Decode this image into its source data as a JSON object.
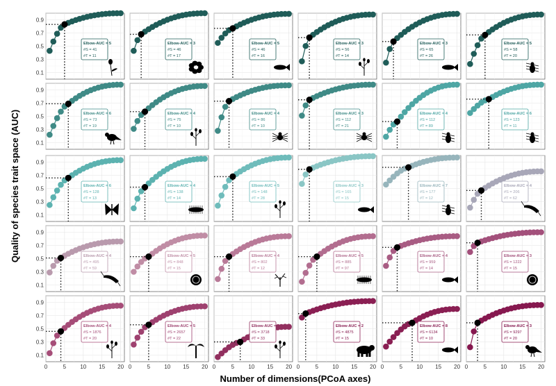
{
  "chart_data": {
    "type": "scatter",
    "xlabel": "Number of dimensions(PCoA axes)",
    "ylabel": "Quality of species trait space (AUC)",
    "xlim": [
      0,
      21
    ],
    "ylim": [
      0,
      1
    ],
    "x_ticks": [
      0,
      5,
      10,
      15,
      20
    ],
    "y_ticks": [
      0.1,
      0.3,
      0.5,
      0.7,
      0.9
    ],
    "grid": true,
    "legend": "none",
    "annotation_labels": {
      "elbow": "Elbow-AUC = ",
      "species": "#S = ",
      "traits": "#T = "
    },
    "panels": [
      {
        "elbow": 5,
        "s": 41,
        "t": 11,
        "auc": 0.83,
        "start": 0.43,
        "end": 1.0,
        "icon": "flower-icon",
        "color": "#1f5c58"
      },
      {
        "elbow": 3,
        "s": 46,
        "t": 17,
        "auc": 0.68,
        "start": 0.43,
        "end": 1.0,
        "icon": "plant-rosette-icon",
        "color": "#1f5c58"
      },
      {
        "elbow": 5,
        "s": 46,
        "t": 16,
        "auc": 0.77,
        "start": 0.55,
        "end": 0.99,
        "icon": "fish-icon",
        "color": "#1f5c58"
      },
      {
        "elbow": 3,
        "s": 56,
        "t": 14,
        "auc": 0.63,
        "start": 0.27,
        "end": 0.98,
        "icon": "grass-icon",
        "color": "#1f5c58"
      },
      {
        "elbow": 3,
        "s": 65,
        "t": 26,
        "auc": 0.57,
        "start": 0.25,
        "end": 0.99,
        "icon": "fish-icon",
        "color": "#1f5c58"
      },
      {
        "elbow": 5,
        "s": 58,
        "t": 20,
        "auc": 0.67,
        "start": 0.23,
        "end": 0.98,
        "icon": "beetle-icon",
        "color": "#1f5c58"
      },
      {
        "elbow": 6,
        "s": 73,
        "t": 19,
        "auc": 0.69,
        "start": 0.22,
        "end": 0.98,
        "icon": "bird-grouse-icon",
        "color": "#3f8a86"
      },
      {
        "elbow": 4,
        "s": 75,
        "t": 10,
        "auc": 0.57,
        "start": 0.31,
        "end": 0.96,
        "icon": "plant-icon",
        "color": "#3f8a86"
      },
      {
        "elbow": 4,
        "s": 86,
        "t": 10,
        "auc": 0.73,
        "start": 0.28,
        "end": 0.97,
        "icon": "spider-icon",
        "color": "#3f8a86"
      },
      {
        "elbow": 3,
        "s": 112,
        "t": 21,
        "auc": 0.75,
        "start": 0.51,
        "end": 0.98,
        "icon": "spider-icon",
        "color": "#3f8a86"
      },
      {
        "elbow": 4,
        "s": 112,
        "t": 89,
        "auc": 0.42,
        "start": 0.19,
        "end": 0.98,
        "icon": "water-bug-icon",
        "color": "#4ea6a4"
      },
      {
        "elbow": 6,
        "s": 123,
        "t": 11,
        "auc": 0.76,
        "start": 0.55,
        "end": 0.98,
        "icon": "ant-icon",
        "color": "#4ea6a4"
      },
      {
        "elbow": 6,
        "s": 128,
        "t": 13,
        "auc": 0.66,
        "start": 0.25,
        "end": 0.93,
        "icon": "butterfly-icon",
        "color": "#5cb2b0"
      },
      {
        "elbow": 4,
        "s": 138,
        "t": 14,
        "auc": 0.52,
        "start": 0.2,
        "end": 0.95,
        "icon": "millipede-icon",
        "color": "#5cb2b0"
      },
      {
        "elbow": 5,
        "s": 148,
        "t": 28,
        "auc": 0.68,
        "start": 0.24,
        "end": 0.97,
        "icon": "plant-icon",
        "color": "#6fbcbb"
      },
      {
        "elbow": 3,
        "s": 165,
        "t": 15,
        "auc": 0.79,
        "start": 0.57,
        "end": 0.99,
        "icon": "fish-icon",
        "color": "#8ac6c5"
      },
      {
        "elbow": 7,
        "s": 177,
        "t": 12,
        "auc": 0.82,
        "start": 0.56,
        "end": 0.97,
        "icon": "flea-icon",
        "color": "#97b5bc"
      },
      {
        "elbow": 4,
        "s": 206,
        "t": 62,
        "auc": 0.47,
        "start": 0.21,
        "end": 0.76,
        "icon": "mayfly-icon",
        "color": "#a8a7b8"
      },
      {
        "elbow": 4,
        "s": 495,
        "t": 59,
        "auc": 0.51,
        "start": 0.29,
        "end": 0.76,
        "icon": "shrimp-icon",
        "color": "#b99aad"
      },
      {
        "elbow": 5,
        "s": 848,
        "t": 15,
        "auc": 0.53,
        "start": 0.3,
        "end": 0.85,
        "icon": "shell-icon",
        "color": "#c08da5"
      },
      {
        "elbow": 4,
        "s": 802,
        "t": 12,
        "auc": 0.53,
        "start": 0.19,
        "end": 0.84,
        "icon": "coral-icon",
        "color": "#b97a98"
      },
      {
        "elbow": 5,
        "s": 885,
        "t": 97,
        "auc": 0.53,
        "start": 0.15,
        "end": 0.84,
        "icon": "sea-cucumber-icon",
        "color": "#b26d8f"
      },
      {
        "elbow": 4,
        "s": 959,
        "t": 14,
        "auc": 0.67,
        "start": 0.39,
        "end": 0.84,
        "icon": "shark-icon",
        "color": "#a85c83"
      },
      {
        "elbow": 3,
        "s": 1222,
        "t": 15,
        "auc": 0.74,
        "start": 0.6,
        "end": 0.9,
        "icon": "sand-dollar-icon",
        "color": "#a3507b"
      },
      {
        "elbow": 4,
        "s": 1876,
        "t": 20,
        "auc": 0.46,
        "start": 0.13,
        "end": 0.85,
        "icon": "plant-icon",
        "color": "#a64d78"
      },
      {
        "elbow": 5,
        "s": 2657,
        "t": 22,
        "auc": 0.56,
        "start": 0.26,
        "end": 0.84,
        "icon": "palm-tree-icon",
        "color": "#9e416f"
      },
      {
        "elbow": 7,
        "s": 3718,
        "t": 33,
        "auc": 0.3,
        "start": 0.07,
        "end": 0.53,
        "icon": "plant-icon",
        "color": "#92305f"
      },
      {
        "elbow": 2,
        "s": 4875,
        "t": 15,
        "auc": 0.73,
        "start": 0.67,
        "end": 0.92,
        "icon": "bear-icon",
        "color": "#8a1f53"
      },
      {
        "elbow": 8,
        "s": 6134,
        "t": 10,
        "auc": 0.59,
        "start": 0.23,
        "end": 0.8,
        "icon": "fish-icon",
        "color": "#8a1f53"
      },
      {
        "elbow": 3,
        "s": 9297,
        "t": 20,
        "auc": 0.59,
        "start": 0.22,
        "end": 0.86,
        "icon": "bird-icon",
        "color": "#86184f"
      }
    ]
  }
}
